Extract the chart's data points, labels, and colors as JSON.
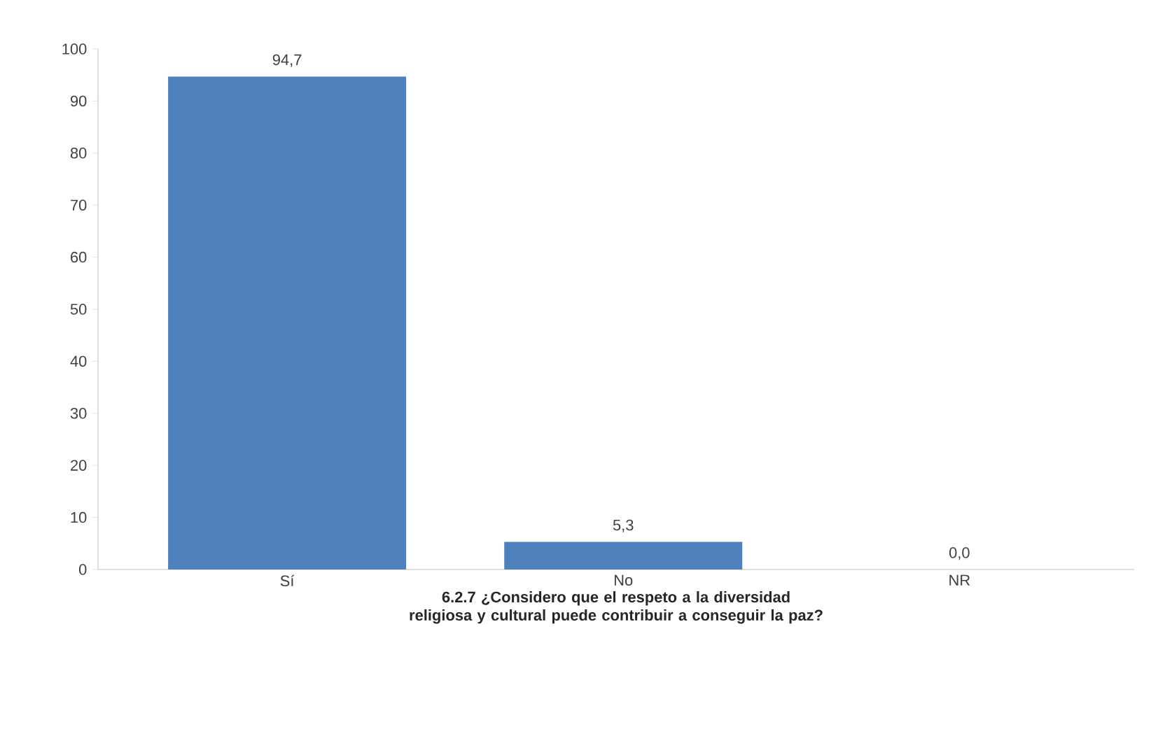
{
  "chart_data": {
    "type": "bar",
    "categories": [
      "Sí",
      "No",
      "NR"
    ],
    "values": [
      94.7,
      5.3,
      0.0
    ],
    "value_labels": [
      "94,7",
      "5,3",
      "0,0"
    ],
    "color": "#4f81bd",
    "xlabel": "6.2.7 ¿Considero que el respeto a la diversidad religiosa y cultural puede contribuir a conseguir la paz?",
    "ylim": [
      0,
      100
    ],
    "yticks": [
      0,
      10,
      20,
      30,
      40,
      50,
      60,
      70,
      80,
      90,
      100
    ]
  }
}
